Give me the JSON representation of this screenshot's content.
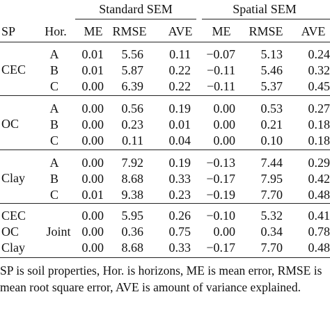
{
  "header": {
    "group_standard": "Standard SEM",
    "group_spatial": "Spatial SEM",
    "col_sp": "SP",
    "col_hor": "Hor.",
    "std_me": "ME",
    "std_rmse": "RMSE",
    "std_ave": "AVE",
    "sp_me": "ME",
    "sp_rmse": "RMSE",
    "sp_ave": "AVE"
  },
  "groups": [
    {
      "property": "CEC",
      "rows": [
        {
          "hor": "A",
          "std": [
            "0.01",
            "5.56",
            "0.11"
          ],
          "spa": [
            "−0.07",
            "5.13",
            "0.24"
          ]
        },
        {
          "hor": "B",
          "std": [
            "0.01",
            "5.87",
            "0.22"
          ],
          "spa": [
            "−0.11",
            "5.46",
            "0.32"
          ]
        },
        {
          "hor": "C",
          "std": [
            "0.00",
            "6.39",
            "0.22"
          ],
          "spa": [
            "−0.11",
            "5.37",
            "0.45"
          ]
        }
      ]
    },
    {
      "property": "OC",
      "rows": [
        {
          "hor": "A",
          "std": [
            "0.00",
            "0.56",
            "0.19"
          ],
          "spa": [
            "0.00",
            "0.53",
            "0.27"
          ]
        },
        {
          "hor": "B",
          "std": [
            "0.00",
            "0.23",
            "0.01"
          ],
          "spa": [
            "0.00",
            "0.21",
            "0.18"
          ]
        },
        {
          "hor": "C",
          "std": [
            "0.00",
            "0.11",
            "0.04"
          ],
          "spa": [
            "0.00",
            "0.10",
            "0.18"
          ]
        }
      ]
    },
    {
      "property": "Clay",
      "rows": [
        {
          "hor": "A",
          "std": [
            "0.00",
            "7.92",
            "0.19"
          ],
          "spa": [
            "−0.13",
            "7.44",
            "0.29"
          ]
        },
        {
          "hor": "B",
          "std": [
            "0.00",
            "8.68",
            "0.33"
          ],
          "spa": [
            "−0.17",
            "7.95",
            "0.42"
          ]
        },
        {
          "hor": "C",
          "std": [
            "0.01",
            "9.38",
            "0.23"
          ],
          "spa": [
            "−0.19",
            "7.70",
            "0.48"
          ]
        }
      ]
    },
    {
      "joint_label": "Joint",
      "rows": [
        {
          "property": "CEC",
          "std": [
            "0.00",
            "5.95",
            "0.26"
          ],
          "spa": [
            "−0.10",
            "5.32",
            "0.41"
          ]
        },
        {
          "property": "OC",
          "std": [
            "0.00",
            "0.36",
            "0.75"
          ],
          "spa": [
            "0.00",
            "0.34",
            "0.78"
          ]
        },
        {
          "property": "Clay",
          "std": [
            "0.00",
            "8.68",
            "0.33"
          ],
          "spa": [
            "−0.17",
            "7.70",
            "0.48"
          ]
        }
      ]
    }
  ],
  "footnote": "SP is soil properties, Hor.  is horizons, ME is mean error, RMSE is mean root square error, AVE is amount of variance explained."
}
